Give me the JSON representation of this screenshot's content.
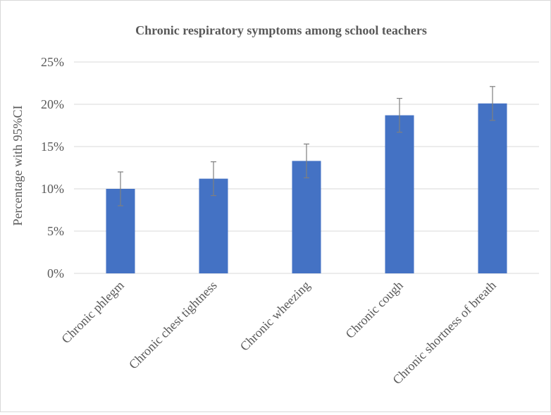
{
  "chart_data": {
    "type": "bar",
    "title": "Chronic respiratory symptoms among school teachers",
    "xlabel": "",
    "ylabel": "Percentage with 95%CI",
    "categories": [
      "Chronic phlegm",
      "Chronic chest tightness",
      "Chronic wheezing",
      "Chronic cough",
      "Chronic shortness of breath"
    ],
    "values": [
      10.0,
      11.2,
      13.3,
      18.7,
      20.1
    ],
    "error_low": [
      8.0,
      9.2,
      11.3,
      16.7,
      18.1
    ],
    "error_high": [
      12.0,
      13.2,
      15.3,
      20.7,
      22.1
    ],
    "ylim": [
      0,
      25
    ],
    "yticks": [
      "0%",
      "5%",
      "10%",
      "15%",
      "20%",
      "25%"
    ],
    "ytick_values": [
      0,
      5,
      10,
      15,
      20,
      25
    ],
    "grid": true,
    "legend": "none",
    "colors": {
      "bar": "#4472C4",
      "error": "#7f7f7f",
      "grid": "#d9d9d9",
      "text": "#595959"
    }
  }
}
